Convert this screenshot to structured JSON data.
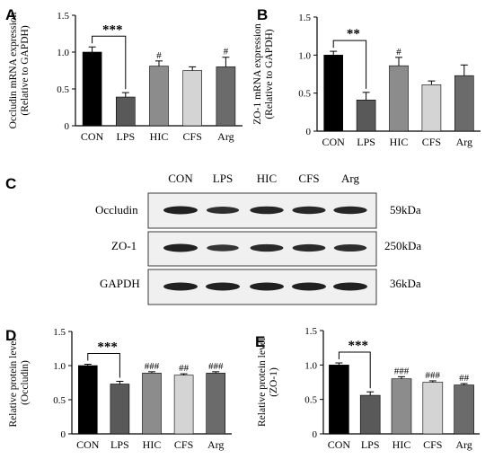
{
  "chart_data": [
    {
      "panel": "A",
      "type": "bar",
      "ylabel": [
        "Occludin mRNA expression",
        "(Relative to GAPDH)"
      ],
      "categories": [
        "CON",
        "LPS",
        "HIC",
        "CFS",
        "Arg"
      ],
      "values": [
        1.0,
        0.39,
        0.81,
        0.75,
        0.8
      ],
      "errors": [
        0.07,
        0.06,
        0.07,
        0.05,
        0.13
      ],
      "significance": [
        "",
        "",
        "#",
        "",
        "#"
      ],
      "bracket": {
        "from": 0,
        "to": 1,
        "label": "***"
      },
      "yticks": [
        0,
        0.5,
        1.0,
        1.5
      ],
      "ytick_labels": [
        "0",
        "0.5",
        "1.0",
        "1.5"
      ],
      "ylim": [
        0,
        1.5
      ],
      "colors": [
        "#000000",
        "#595959",
        "#8c8c8c",
        "#d4d4d4",
        "#6b6b6b"
      ]
    },
    {
      "panel": "B",
      "type": "bar",
      "ylabel": [
        "ZO-1 mRNA expression",
        "(Relative to GAPDH)"
      ],
      "categories": [
        "CON",
        "LPS",
        "HIC",
        "CFS",
        "Arg"
      ],
      "values": [
        1.0,
        0.41,
        0.86,
        0.61,
        0.73
      ],
      "errors": [
        0.05,
        0.1,
        0.11,
        0.05,
        0.14
      ],
      "significance": [
        "",
        "",
        "#",
        "",
        ""
      ],
      "bracket": {
        "from": 0,
        "to": 1,
        "label": "**"
      },
      "yticks": [
        0,
        0.5,
        1.0,
        1.5
      ],
      "ytick_labels": [
        "0",
        "0.5",
        "1.0",
        "1.5"
      ],
      "ylim": [
        0,
        1.5
      ],
      "colors": [
        "#000000",
        "#595959",
        "#8c8c8c",
        "#d4d4d4",
        "#6b6b6b"
      ]
    },
    {
      "panel": "D",
      "type": "bar",
      "ylabel": [
        "Relative protein level",
        "(Occludin)"
      ],
      "categories": [
        "CON",
        "LPS",
        "HIC",
        "CFS",
        "Arg"
      ],
      "values": [
        1.0,
        0.73,
        0.89,
        0.86,
        0.89
      ],
      "errors": [
        0.02,
        0.04,
        0.02,
        0.02,
        0.02
      ],
      "significance": [
        "",
        "",
        "###",
        "##",
        "###"
      ],
      "bracket": {
        "from": 0,
        "to": 1,
        "label": "***"
      },
      "yticks": [
        0,
        0.5,
        1.0,
        1.5
      ],
      "ytick_labels": [
        "0",
        "0.5",
        "1.0",
        "1.5"
      ],
      "ylim": [
        0,
        1.5
      ],
      "colors": [
        "#000000",
        "#595959",
        "#8c8c8c",
        "#d4d4d4",
        "#6b6b6b"
      ]
    },
    {
      "panel": "E",
      "type": "bar",
      "ylabel": [
        "Relative protein level",
        "(ZO-1)"
      ],
      "categories": [
        "CON",
        "LPS",
        "HIC",
        "CFS",
        "Arg"
      ],
      "values": [
        1.0,
        0.56,
        0.8,
        0.75,
        0.71
      ],
      "errors": [
        0.03,
        0.05,
        0.03,
        0.02,
        0.02
      ],
      "significance": [
        "",
        "",
        "###",
        "###",
        "##"
      ],
      "bracket": {
        "from": 0,
        "to": 1,
        "label": "***"
      },
      "yticks": [
        0,
        0.5,
        1.0,
        1.5
      ],
      "ytick_labels": [
        "0",
        "0.5",
        "1.0",
        "1.5"
      ],
      "ylim": [
        0,
        1.5
      ],
      "colors": [
        "#000000",
        "#595959",
        "#8c8c8c",
        "#d4d4d4",
        "#6b6b6b"
      ]
    }
  ],
  "blot": {
    "panel": "C",
    "lanes": [
      "CON",
      "LPS",
      "HIC",
      "CFS",
      "Arg"
    ],
    "rows": [
      {
        "label": "Occludin",
        "size": "59kDa",
        "intensity": [
          1.0,
          0.72,
          0.9,
          0.85,
          0.88
        ]
      },
      {
        "label": "ZO-1",
        "size": "250kDa",
        "intensity": [
          1.0,
          0.6,
          0.82,
          0.8,
          0.75
        ]
      },
      {
        "label": "GAPDH",
        "size": "36kDa",
        "intensity": [
          1.0,
          1.0,
          1.0,
          1.0,
          1.0
        ]
      }
    ]
  }
}
